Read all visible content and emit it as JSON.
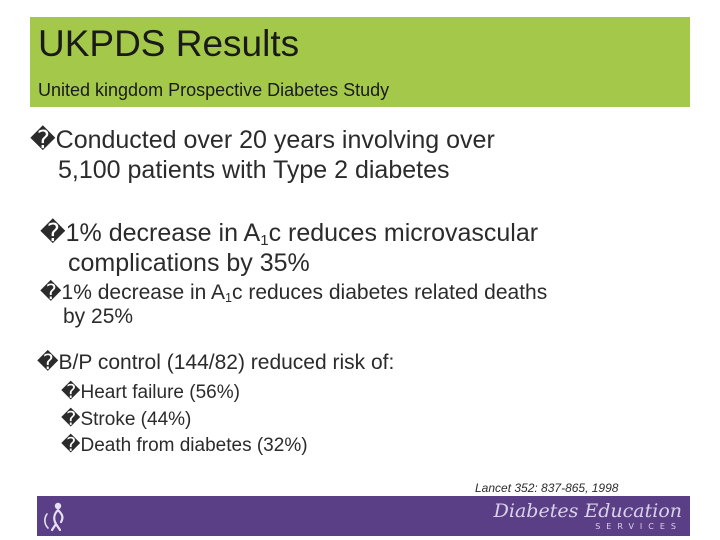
{
  "header": {
    "title": "UKPDS Results",
    "subtitle": "United kingdom Prospective Diabetes Study"
  },
  "bullet_glyph": "�",
  "sub_bullet_glyph": "�",
  "bullets": [
    {
      "line1": "Conducted over 20 years involving over",
      "line2": "5,100 patients with Type 2 diabetes"
    },
    {
      "line1_pre": "1% decrease in A",
      "line1_sub": "1",
      "line1_post": "c reduces microvascular",
      "line2": "complications by 35%"
    },
    {
      "line1_pre": "1% decrease in A",
      "line1_sub": "1",
      "line1_post": "c reduces diabetes related deaths",
      "line2": "by 25%"
    },
    {
      "line1": "B/P control (144/82) reduced risk of:"
    }
  ],
  "sub_bullets": [
    "Heart failure (56%)",
    "Stroke (44%)",
    "Death from diabetes (32%)"
  ],
  "citation": "Lancet 352: 837-865, 1998",
  "footer": {
    "brand_name": "Diabetes Education",
    "brand_sub": "SERVICES",
    "logo_icon": "person-figure-logo"
  },
  "colors": {
    "title_bar": "#a4c94a",
    "footer": "#5b3f86"
  }
}
